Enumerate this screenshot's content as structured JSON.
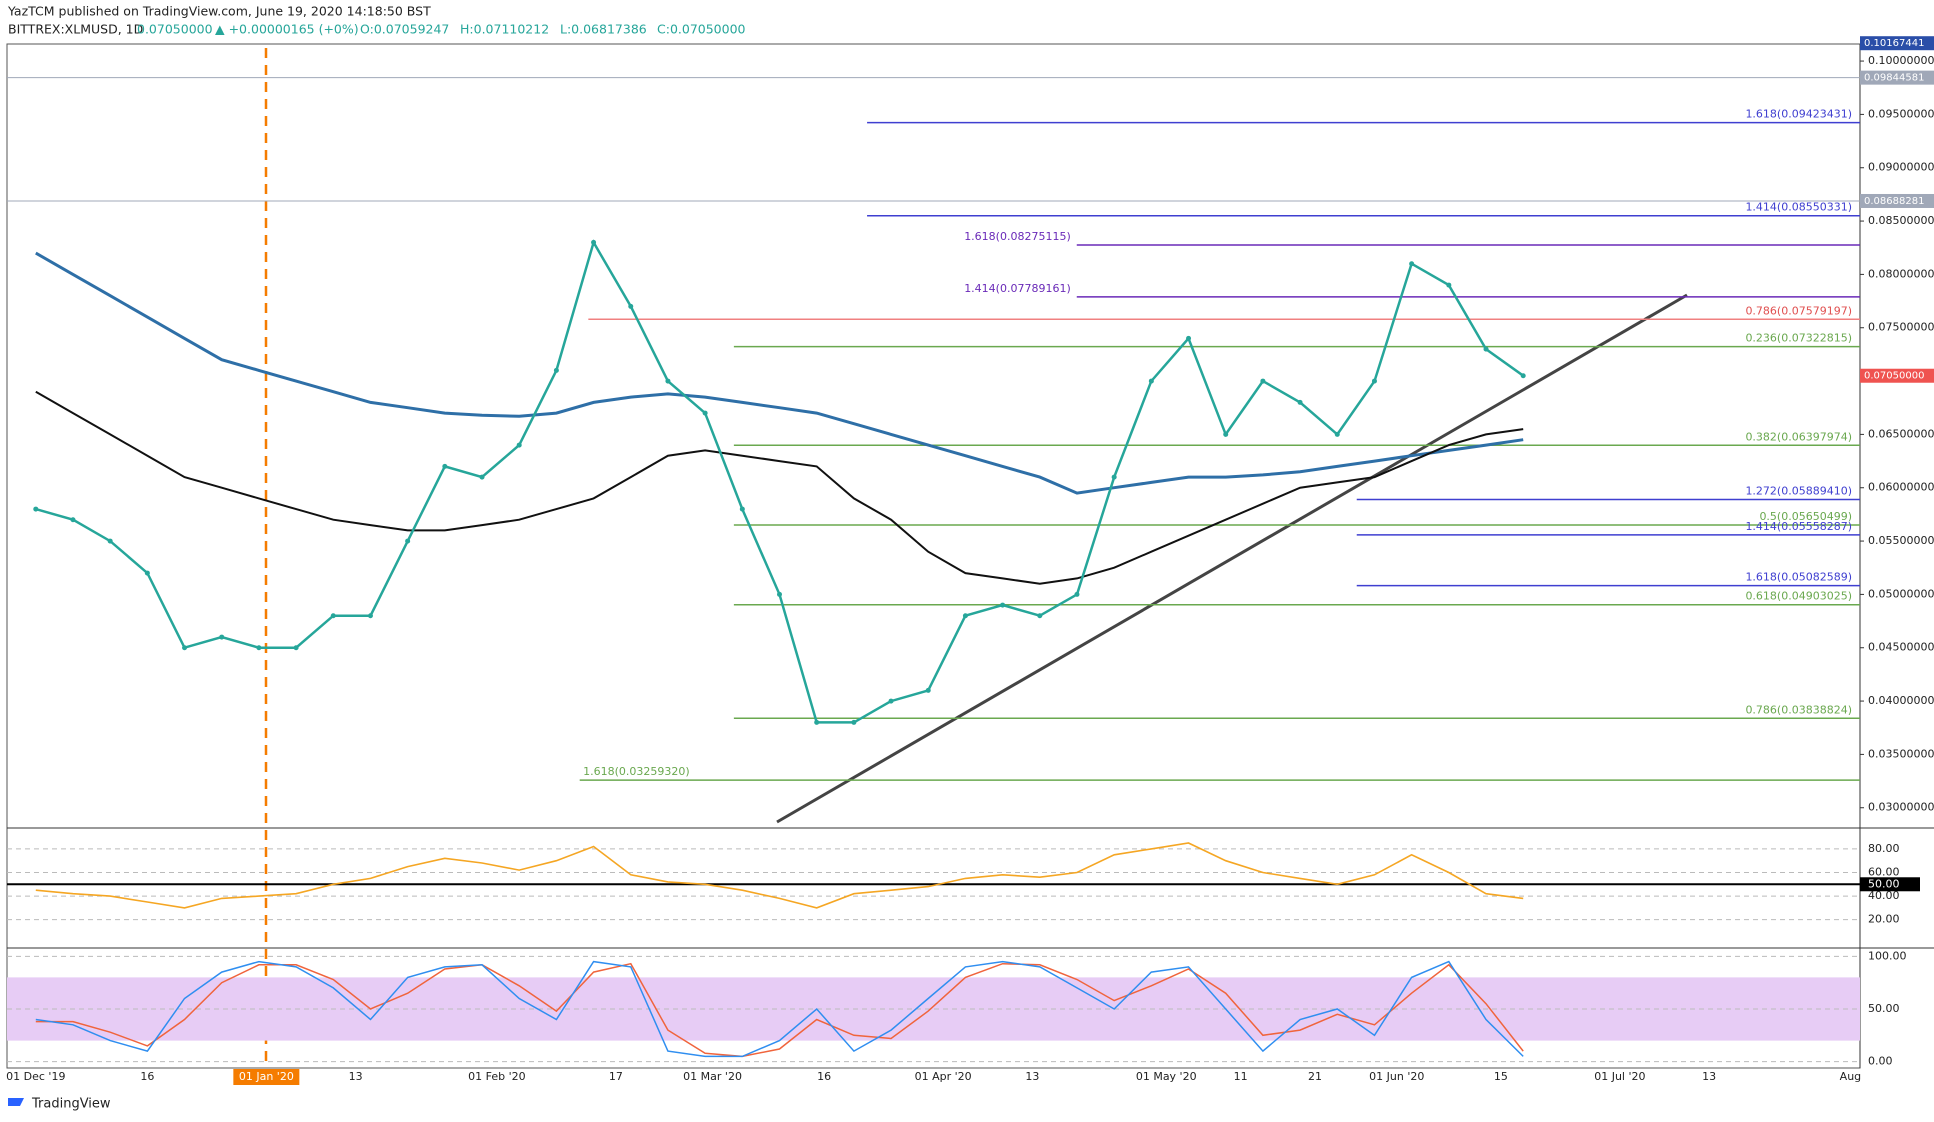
{
  "header": {
    "publisher": "YazTCM published on TradingView.com, June 19, 2020 14:18:50 BST",
    "symbol": "BITTREX:XLMUSD, 1D",
    "last": "0.07050000",
    "change": "▲ +0.00000165 (+0%)",
    "open": "O:0.07059247",
    "high": "H:0.07110212",
    "low": "L:0.06817386",
    "close": "C:0.07050000"
  },
  "x_labels": [
    "01 Dec '19",
    "16",
    "01 Jan '20",
    "13",
    "01 Feb '20",
    "17",
    "01 Mar '20",
    "16",
    "01 Apr '20",
    "13",
    "01 May '20",
    "11",
    "21",
    "01 Jun '20",
    "15",
    "01 Jul '20",
    "13",
    "Aug"
  ],
  "footer": {
    "brand": "TradingView"
  },
  "chart_data": [
    {
      "type": "line",
      "ylim": [
        0.0281,
        0.1016
      ],
      "yticks": [
        {
          "value": 0.1,
          "label": "0.10000000"
        },
        {
          "value": 0.095,
          "label": "0.09500000"
        },
        {
          "value": 0.09,
          "label": "0.09000000"
        },
        {
          "value": 0.085,
          "label": "0.08500000"
        },
        {
          "value": 0.08,
          "label": "0.08000000"
        },
        {
          "value": 0.075,
          "label": "0.07500000"
        },
        {
          "value": 0.065,
          "label": "0.06500000"
        },
        {
          "value": 0.06,
          "label": "0.06000000"
        },
        {
          "value": 0.055,
          "label": "0.05500000"
        },
        {
          "value": 0.05,
          "label": "0.05000000"
        },
        {
          "value": 0.045,
          "label": "0.04500000"
        },
        {
          "value": 0.04,
          "label": "0.04000000"
        },
        {
          "value": 0.035,
          "label": "0.03500000"
        },
        {
          "value": 0.03,
          "label": "0.03000000"
        }
      ],
      "series": [
        {
          "color": "#26a69a",
          "values": [
            0.058,
            0.057,
            0.055,
            0.052,
            0.045,
            0.046,
            0.045,
            0.045,
            0.048,
            0.048,
            0.055,
            0.062,
            0.061,
            0.064,
            0.071,
            0.083,
            0.077,
            0.07,
            0.067,
            0.058,
            0.05,
            0.038,
            0.038,
            0.04,
            0.041,
            0.048,
            0.049,
            0.048,
            0.05,
            0.061,
            0.07,
            0.074,
            0.065,
            0.07,
            0.068,
            0.065,
            0.07,
            0.081,
            0.079,
            0.073,
            0.0705
          ]
        },
        {
          "color": "#2e6fa7",
          "values": [
            0.082,
            0.08,
            0.078,
            0.076,
            0.074,
            0.072,
            0.071,
            0.07,
            0.069,
            0.068,
            0.0675,
            0.067,
            0.0668,
            0.0667,
            0.067,
            0.068,
            0.0685,
            0.0688,
            0.0685,
            0.068,
            0.0675,
            0.067,
            0.066,
            0.065,
            0.064,
            0.063,
            0.062,
            0.061,
            0.0595,
            0.06,
            0.0605,
            0.061,
            0.061,
            0.0612,
            0.0615,
            0.062,
            0.0625,
            0.063,
            0.0635,
            0.064,
            0.0645
          ]
        },
        {
          "color": "#111111",
          "values": [
            0.069,
            0.067,
            0.065,
            0.063,
            0.061,
            0.06,
            0.059,
            0.058,
            0.057,
            0.0565,
            0.056,
            0.056,
            0.0565,
            0.057,
            0.058,
            0.059,
            0.061,
            0.063,
            0.0635,
            0.063,
            0.0625,
            0.062,
            0.059,
            0.057,
            0.054,
            0.052,
            0.0515,
            0.051,
            0.0515,
            0.0525,
            0.054,
            0.0555,
            0.057,
            0.0585,
            0.06,
            0.0605,
            0.061,
            0.0625,
            0.064,
            0.065,
            0.0655
          ]
        }
      ],
      "levels": [
        {
          "label": "1.618(0.09423431)",
          "value": 0.09423431,
          "color": "#3f3fd0"
        },
        {
          "label": "1.414(0.08550331)",
          "value": 0.08550331,
          "color": "#3f3fd0"
        },
        {
          "label": "1.618(0.08275115)",
          "value": 0.08275115,
          "color": "#6a2ab8"
        },
        {
          "label": "1.414(0.07789161)",
          "value": 0.07789161,
          "color": "#6a2ab8"
        },
        {
          "label": "0.786(0.07579197)",
          "value": 0.07579197,
          "color": "#f08080"
        },
        {
          "label": "0.236(0.07322815)",
          "value": 0.07322815,
          "color": "#6aa84f"
        },
        {
          "label": "0.382(0.06397974)",
          "value": 0.06397974,
          "color": "#6aa84f"
        },
        {
          "label": "1.272(0.05889410)",
          "value": 0.0588941,
          "color": "#3f3fd0"
        },
        {
          "label": "0.5(0.05650499)",
          "value": 0.05650499,
          "color": "#6aa84f"
        },
        {
          "label": "1.414(0.05558287)",
          "value": 0.05558287,
          "color": "#3f3fd0"
        },
        {
          "label": "1.618(0.05082589)",
          "value": 0.05082589,
          "color": "#3f3fd0"
        },
        {
          "label": "0.618(0.04903025)",
          "value": 0.04903025,
          "color": "#6aa84f"
        },
        {
          "label": "0.786(0.03838824)",
          "value": 0.03838824,
          "color": "#6aa84f"
        },
        {
          "label": "1.618(0.03259320)",
          "value": 0.0325932,
          "color": "#6aa84f"
        }
      ],
      "price_tags": [
        {
          "label": "0.10167441",
          "value": 0.10167441,
          "color": "#2a4ea8"
        },
        {
          "label": "0.09844581",
          "value": 0.09844581,
          "color": "#a0a8b8"
        },
        {
          "label": "0.08688281",
          "value": 0.08688281,
          "color": "#a0a8b8"
        },
        {
          "label": "0.07050000",
          "value": 0.0705,
          "color": "#ef5350"
        }
      ]
    },
    {
      "type": "line",
      "ylim": [
        -4,
        96
      ],
      "yticks": [
        {
          "value": 80,
          "label": "80.00"
        },
        {
          "value": 60,
          "label": "60.00"
        },
        {
          "value": 50,
          "label": "50.00"
        },
        {
          "value": 40,
          "label": "40.00"
        },
        {
          "value": 20,
          "label": "20.00"
        }
      ],
      "series": [
        {
          "color": "#f5a623",
          "values": [
            45,
            42,
            40,
            35,
            30,
            38,
            40,
            42,
            50,
            55,
            65,
            72,
            68,
            62,
            70,
            82,
            58,
            52,
            50,
            45,
            38,
            30,
            42,
            45,
            48,
            55,
            58,
            56,
            60,
            75,
            80,
            85,
            70,
            60,
            55,
            50,
            58,
            75,
            60,
            42,
            38
          ]
        }
      ]
    },
    {
      "type": "line",
      "ylim": [
        -6,
        106
      ],
      "yticks": [
        {
          "value": 100,
          "label": "100.00"
        },
        {
          "value": 50,
          "label": "50.00"
        },
        {
          "value": 0,
          "label": "0.00"
        }
      ],
      "band": [
        20,
        80
      ],
      "series": [
        {
          "color": "#2f8ef0",
          "values": [
            40,
            35,
            20,
            10,
            60,
            85,
            95,
            90,
            70,
            40,
            80,
            90,
            92,
            60,
            40,
            95,
            90,
            10,
            5,
            5,
            20,
            50,
            10,
            30,
            60,
            90,
            95,
            90,
            70,
            50,
            85,
            90,
            50,
            10,
            40,
            50,
            25,
            80,
            95,
            40,
            5
          ]
        },
        {
          "color": "#f0643c",
          "values": [
            38,
            38,
            28,
            15,
            40,
            75,
            92,
            92,
            78,
            50,
            65,
            88,
            92,
            72,
            48,
            85,
            93,
            30,
            8,
            5,
            12,
            40,
            25,
            22,
            48,
            80,
            93,
            92,
            78,
            58,
            72,
            88,
            65,
            25,
            30,
            45,
            35,
            65,
            92,
            55,
            10
          ]
        }
      ]
    }
  ]
}
